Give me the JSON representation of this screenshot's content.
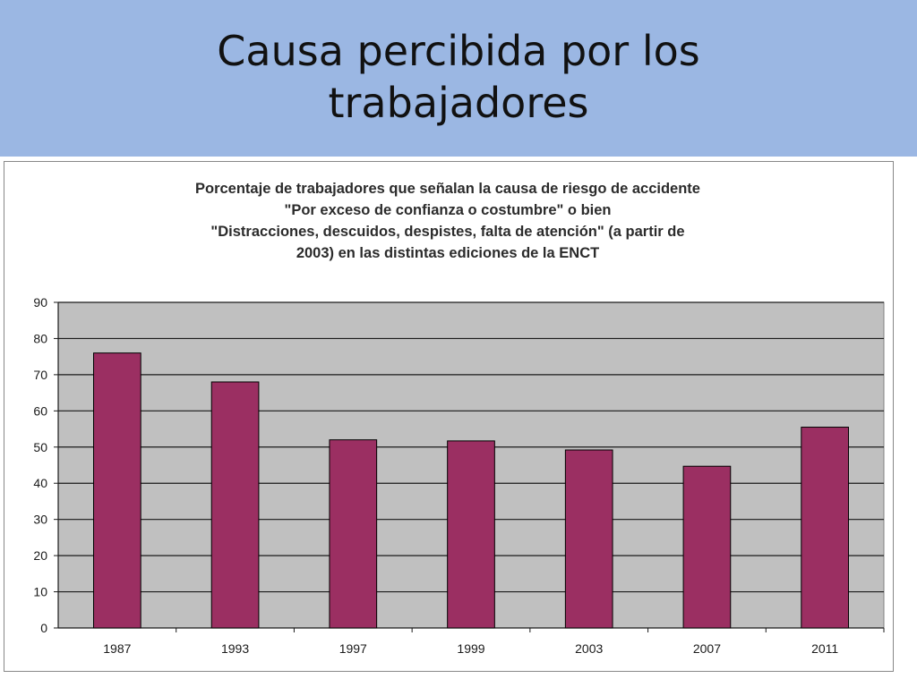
{
  "slide": {
    "title_lines": [
      "Causa percibida por los",
      "trabajadores"
    ],
    "header_color": "#9bb7e3"
  },
  "chart_data": {
    "type": "bar",
    "title_lines": [
      "Porcentaje de trabajadores que señalan la causa de riesgo de accidente",
      "\"Por exceso de confianza o costumbre\"  o bien",
      "\"Distracciones, descuidos, despistes, falta de atención\" (a partir de",
      "2003) en las distintas ediciones de la ENCT"
    ],
    "categories": [
      "1987",
      "1993",
      "1997",
      "1999",
      "2003",
      "2007",
      "2011"
    ],
    "values": [
      76,
      68,
      52,
      51.7,
      49.2,
      44.7,
      55.5
    ],
    "ylim": [
      0,
      90
    ],
    "yticks": [
      0,
      10,
      20,
      30,
      40,
      50,
      60,
      70,
      80,
      90
    ],
    "xlabel": "",
    "ylabel": "",
    "grid": true,
    "legend": "none",
    "bar_color": "#9b2f62",
    "plot_background": "#c0c0c0"
  }
}
